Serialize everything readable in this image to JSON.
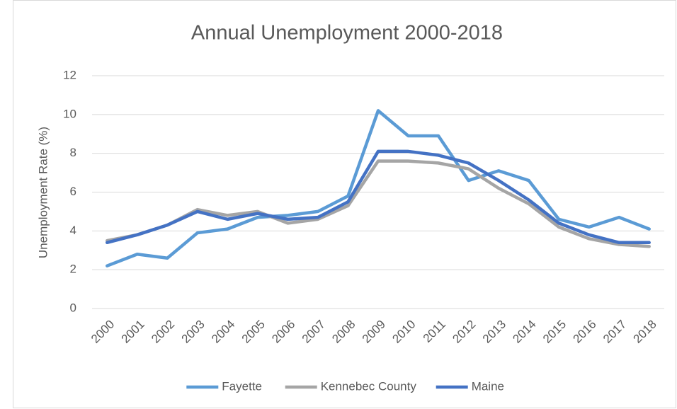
{
  "chart_data": {
    "type": "line",
    "title": "Annual Unemployment 2000-2018",
    "y_label": "Unemployment Rate (%)",
    "categories": [
      "2000",
      "2001",
      "2002",
      "2003",
      "2004",
      "2005",
      "2006",
      "2007",
      "2008",
      "2009",
      "2010",
      "2011",
      "2012",
      "2013",
      "2014",
      "2015",
      "2016",
      "2017",
      "2018"
    ],
    "series": [
      {
        "name": "Fayette",
        "color": "#5b9bd5",
        "values": [
          2.2,
          2.8,
          2.6,
          3.9,
          4.1,
          4.7,
          4.8,
          5.0,
          5.8,
          10.2,
          8.9,
          8.9,
          6.6,
          7.1,
          6.6,
          4.6,
          4.2,
          4.7,
          4.1
        ]
      },
      {
        "name": "Kennebec County",
        "color": "#a5a5a5",
        "values": [
          3.5,
          3.8,
          4.3,
          5.1,
          4.8,
          5.0,
          4.4,
          4.6,
          5.3,
          7.6,
          7.6,
          7.5,
          7.2,
          6.2,
          5.4,
          4.2,
          3.6,
          3.3,
          3.2
        ]
      },
      {
        "name": "Maine",
        "color": "#4472c4",
        "values": [
          3.4,
          3.8,
          4.3,
          5.0,
          4.6,
          4.9,
          4.6,
          4.7,
          5.5,
          8.1,
          8.1,
          7.9,
          7.5,
          6.6,
          5.6,
          4.4,
          3.8,
          3.4,
          3.4
        ]
      }
    ],
    "ylim": [
      0,
      12
    ],
    "yticks": [
      0,
      2,
      4,
      6,
      8,
      10,
      12
    ],
    "grid": true,
    "legend": "bottom"
  }
}
